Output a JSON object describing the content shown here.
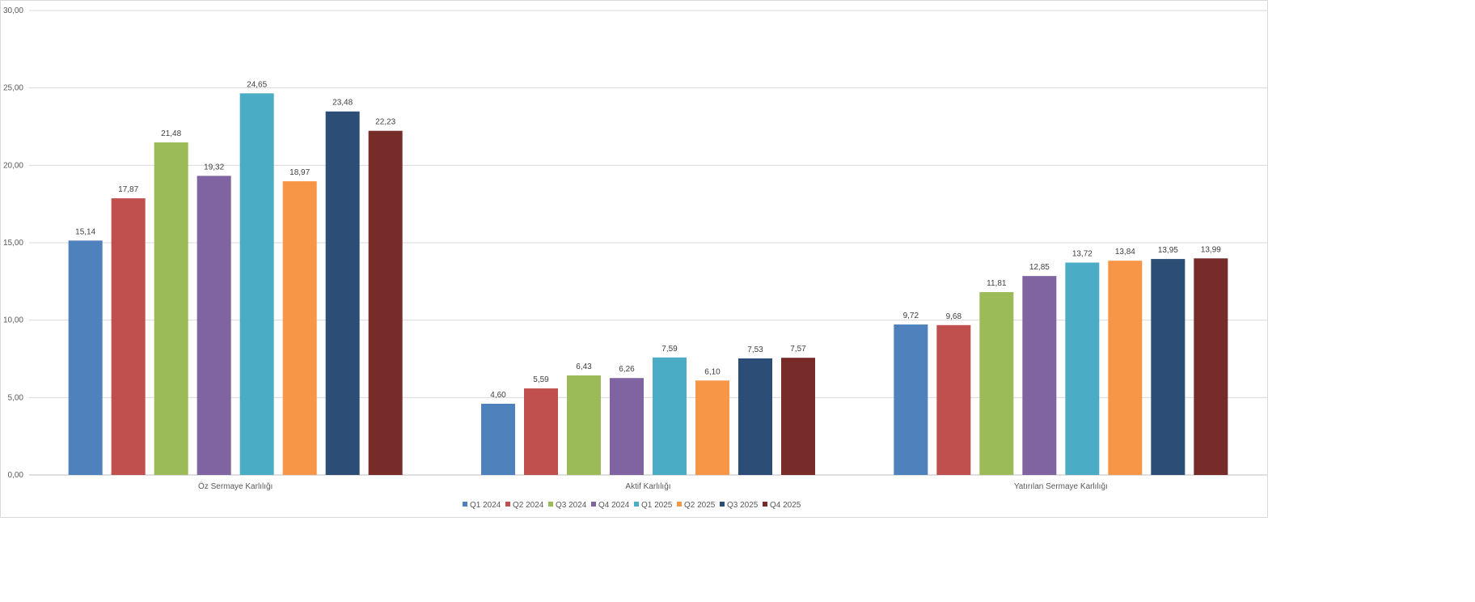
{
  "chart_data": {
    "type": "bar",
    "title": "",
    "xlabel": "",
    "ylabel": "",
    "ylim": [
      0,
      30
    ],
    "y_ticks": [
      "0,00",
      "5,00",
      "10,00",
      "15,00",
      "20,00",
      "25,00",
      "30,00"
    ],
    "grid": true,
    "legend_position": "bottom",
    "categories": [
      "Öz Sermaye Karlılığı",
      "Aktif Karlılığı",
      "Yatırılan Sermaye Karlılığı"
    ],
    "series": [
      {
        "name": "Q1 2024",
        "color": "#4f81bd",
        "values": [
          15.14,
          4.6,
          9.72
        ],
        "labels": [
          "15,14",
          "4,60",
          "9,72"
        ]
      },
      {
        "name": "Q2 2024",
        "color": "#c0504d",
        "values": [
          17.87,
          5.59,
          9.68
        ],
        "labels": [
          "17,87",
          "5,59",
          "9,68"
        ]
      },
      {
        "name": "Q3 2024",
        "color": "#9bbb59",
        "values": [
          21.48,
          6.43,
          11.81
        ],
        "labels": [
          "21,48",
          "6,43",
          "11,81"
        ]
      },
      {
        "name": "Q4 2024",
        "color": "#8064a2",
        "values": [
          19.32,
          6.26,
          12.85
        ],
        "labels": [
          "19,32",
          "6,26",
          "12,85"
        ]
      },
      {
        "name": "Q1 2025",
        "color": "#4bacc6",
        "values": [
          24.65,
          7.59,
          13.72
        ],
        "labels": [
          "24,65",
          "7,59",
          "13,72"
        ]
      },
      {
        "name": "Q2 2025",
        "color": "#f79646",
        "values": [
          18.97,
          6.1,
          13.84
        ],
        "labels": [
          "18,97",
          "6,10",
          "13,84"
        ]
      },
      {
        "name": "Q3 2025",
        "color": "#2c4d75",
        "values": [
          23.48,
          7.53,
          13.95
        ],
        "labels": [
          "23,48",
          "7,53",
          "13,95"
        ]
      },
      {
        "name": "Q4 2025",
        "color": "#772c2a",
        "values": [
          22.23,
          7.57,
          13.99
        ],
        "labels": [
          "22,23",
          "7,57",
          "13,99"
        ]
      }
    ]
  }
}
